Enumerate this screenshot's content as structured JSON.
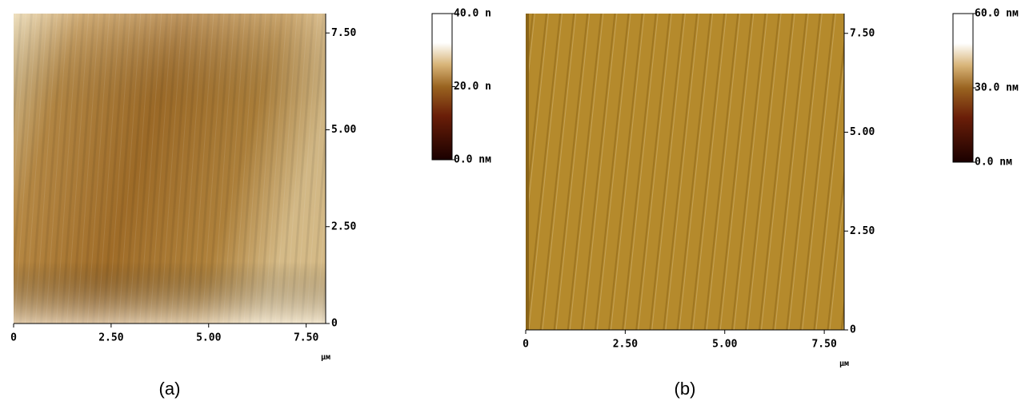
{
  "chart_data": [
    {
      "type": "image",
      "caption": "(a)",
      "x_unit": "μм",
      "xlim": [
        0,
        8
      ],
      "xticks": [
        0,
        {
          "value": 2.5,
          "label": "2.50"
        },
        {
          "value": 5,
          "label": "5.00"
        },
        {
          "value": 7.5,
          "label": "7.50"
        }
      ],
      "ylim": [
        0,
        8
      ],
      "yticks": [
        0,
        {
          "value": 2.5,
          "label": "2.50"
        },
        {
          "value": 5,
          "label": "5.00"
        },
        {
          "value": 7.5,
          "label": "7.50"
        }
      ],
      "clim": [
        0,
        40
      ],
      "cticks": [
        {
          "value": 0,
          "label": "0.0 nм"
        },
        {
          "value": 20,
          "label": "20.0 n"
        },
        {
          "value": 40,
          "label": "40.0 n"
        }
      ]
    },
    {
      "type": "image",
      "caption": "(b)",
      "x_unit": "μм",
      "xlim": [
        0,
        8
      ],
      "xticks": [
        0,
        {
          "value": 2.5,
          "label": "2.50"
        },
        {
          "value": 5,
          "label": "5.00"
        },
        {
          "value": 7.5,
          "label": "7.50"
        }
      ],
      "ylim": [
        0,
        8
      ],
      "yticks": [
        0,
        {
          "value": 2.5,
          "label": "2.50"
        },
        {
          "value": 5,
          "label": "5.00"
        },
        {
          "value": 7.5,
          "label": "7.50"
        }
      ],
      "clim": [
        0,
        60
      ],
      "cticks": [
        {
          "value": 0,
          "label": "0.0 nм"
        },
        {
          "value": 30,
          "label": "30.0 nм"
        },
        {
          "value": 60,
          "label": "60.0 nм"
        }
      ]
    }
  ]
}
